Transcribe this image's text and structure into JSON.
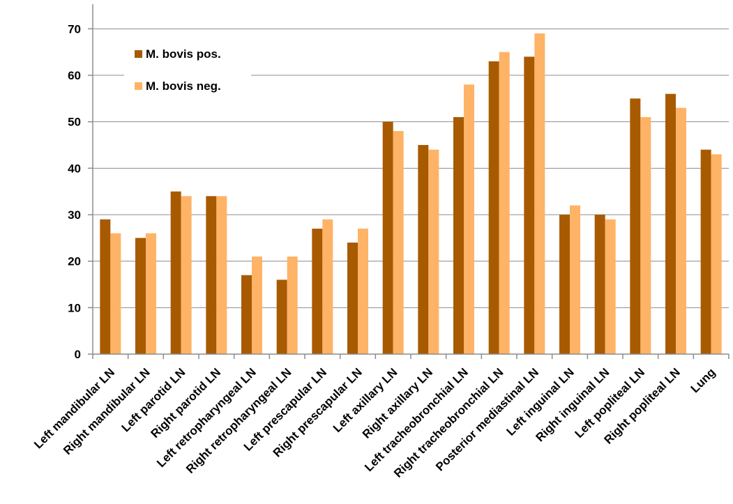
{
  "chart_data": {
    "type": "bar",
    "categories": [
      "Left mandibular LN",
      "Right mandibular LN",
      "Left parotid LN",
      "Right parotid LN",
      "Left retropharyngeal LN",
      "Right retropharyngeal LN",
      "Left prescapular LN",
      "Right prescapular LN",
      "Left axillary LN",
      "Right axillary LN",
      "Left tracheobronchial LN",
      "Right tracheobronchial LN",
      "Posterior mediastinal LN",
      "Left inguinal LN",
      "Right inguinal LN",
      "Left popliteal LN",
      "Right popliteal LN",
      "Lung"
    ],
    "series": [
      {
        "name": "M. bovis pos.",
        "color": "#a85a00",
        "values": [
          29,
          25,
          35,
          34,
          17,
          16,
          27,
          24,
          50,
          45,
          51,
          63,
          64,
          30,
          30,
          55,
          56,
          44
        ]
      },
      {
        "name": "M. bovis neg.",
        "color": "#ffb366",
        "values": [
          26,
          26,
          34,
          34,
          21,
          21,
          29,
          27,
          48,
          44,
          58,
          65,
          69,
          32,
          29,
          51,
          53,
          43
        ]
      }
    ],
    "yticks": [
      0,
      10,
      20,
      30,
      40,
      50,
      60,
      70
    ],
    "ylim": [
      0,
      75
    ],
    "grid": true,
    "legend_position": "top-left"
  }
}
